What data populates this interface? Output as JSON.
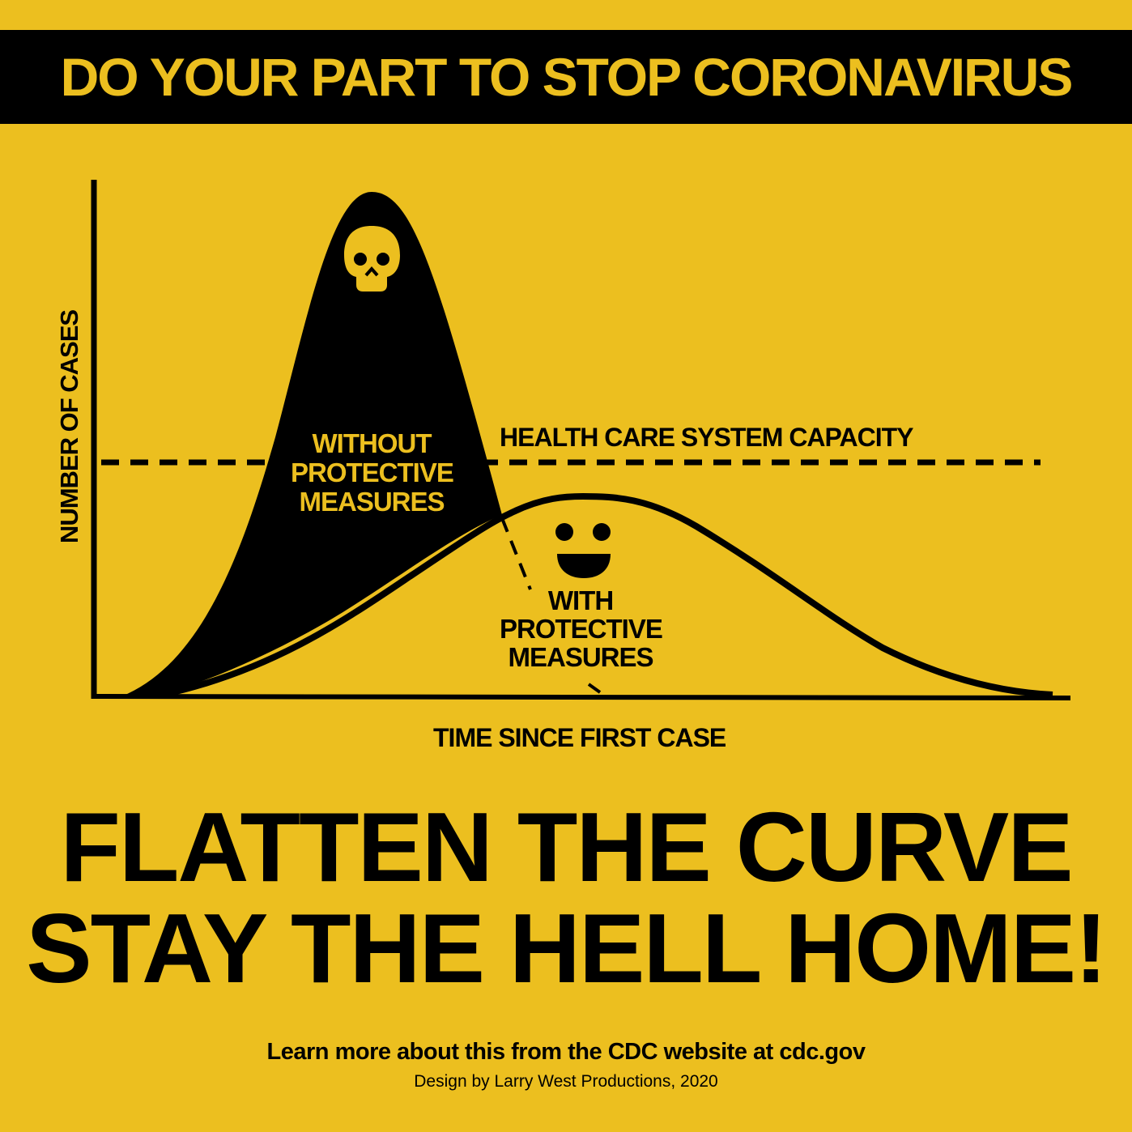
{
  "header": {
    "title": "DO YOUR PART TO STOP CORONAVIRUS"
  },
  "diagram": {
    "y_axis_label": "NUMBER OF CASES",
    "x_axis_label": "TIME SINCE FIRST CASE",
    "capacity_label": "HEALTH CARE SYSTEM CAPACITY",
    "without_label": [
      "WITHOUT",
      "PROTECTIVE",
      "MEASURES"
    ],
    "with_label": [
      "WITH",
      "PROTECTIVE",
      "MEASURES"
    ],
    "icons": [
      "skull-icon",
      "smiley-face-icon"
    ]
  },
  "headline": {
    "line1": "FLATTEN THE CURVE",
    "line2": "STAY THE HELL HOME!"
  },
  "footer": {
    "learn_more": "Learn more about this from the CDC website at cdc.gov",
    "credit": "Design by Larry West Productions, 2020"
  },
  "colors": {
    "background": "#ECBF1F",
    "ink": "#000000"
  }
}
